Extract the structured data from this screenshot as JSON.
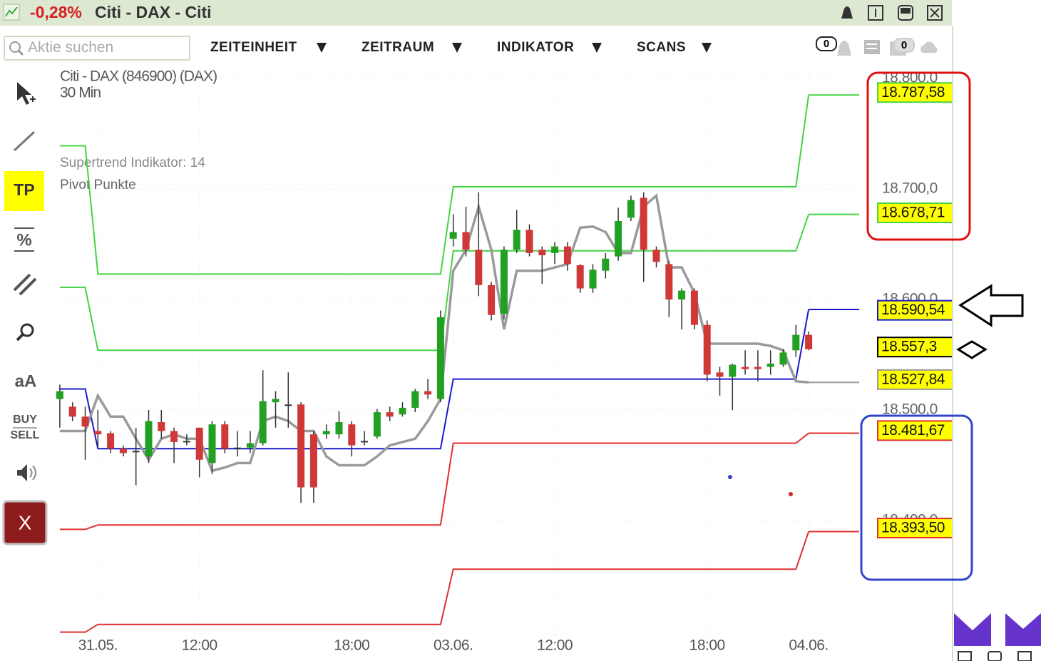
{
  "header": {
    "change": "-0,28%",
    "title": "Citi - DAX - Citi"
  },
  "toolbar": {
    "search_placeholder": "Aktie suchen",
    "menus": [
      "ZEITEINHEIT",
      "ZEITRAUM",
      "INDIKATOR",
      "SCANS"
    ],
    "badges": [
      0,
      0
    ]
  },
  "sidebar": {
    "tools": [
      "TP",
      "%",
      "aA",
      "BUY",
      "SELL",
      "X"
    ]
  },
  "chart_data": {
    "type": "candlestick",
    "instrument": "Citi - DAX (846900) (DAX)",
    "interval": "30 Min",
    "indicators": [
      "Supertrend Indikator: 14",
      "Pivot Punkte"
    ],
    "categories": [
      null,
      null,
      null,
      "31.05.",
      null,
      null,
      null,
      null,
      null,
      null,
      null,
      "12:00",
      null,
      null,
      null,
      null,
      null,
      null,
      null,
      null,
      null,
      null,
      null,
      "18:00",
      null,
      null,
      null,
      null,
      null,
      null,
      null,
      "03.06.",
      null,
      null,
      null,
      null,
      null,
      null,
      null,
      "12:00",
      null,
      null,
      null,
      null,
      null,
      null,
      null,
      null,
      null,
      null,
      null,
      "18:00",
      null,
      null,
      null,
      null,
      null,
      null,
      null,
      "04.06."
    ],
    "open": [
      18510,
      18503,
      18494,
      18481,
      18479,
      18465,
      18463,
      18458,
      18489,
      18481,
      18472,
      18484,
      18452,
      18487,
      18466,
      18466,
      18470,
      18507,
      18505,
      18505,
      18478,
      18478,
      18478,
      18487,
      18472,
      18476,
      18498,
      18496,
      18502,
      18517,
      18510,
      18655,
      18661,
      18645,
      18613,
      18587,
      18645,
      18663,
      18645,
      18642,
      18648,
      18631,
      18610,
      18626,
      18639,
      18674,
      18692,
      18645,
      18632,
      18600,
      18608,
      18577,
      18534,
      18530,
      18539,
      18539,
      18539,
      18541,
      18554,
      18568
    ],
    "high": [
      18523,
      18507,
      18503,
      18500,
      18481,
      18468,
      18484,
      18500,
      18500,
      18484,
      18478,
      18484,
      18490,
      18490,
      18481,
      18481,
      18536,
      18517,
      18534,
      18507,
      18481,
      18487,
      18499,
      18490,
      18481,
      18501,
      18503,
      18507,
      18519,
      18528,
      18590,
      18677,
      18684,
      18697,
      18616,
      18648,
      18681,
      18668,
      18648,
      18652,
      18652,
      18632,
      18632,
      18642,
      18683,
      18694,
      18697,
      18648,
      18635,
      18610,
      18610,
      18581,
      18539,
      18542,
      18554,
      18554,
      18554,
      18555,
      18577,
      18571
    ],
    "low": [
      18484,
      18490,
      18455,
      18465,
      18461,
      18458,
      18432,
      18452,
      18474,
      18452,
      18468,
      18439,
      18442,
      18461,
      18458,
      18461,
      18468,
      18484,
      18484,
      18416,
      18416,
      18474,
      18474,
      18458,
      18468,
      18474,
      18490,
      18494,
      18498,
      18510,
      18507,
      18648,
      18639,
      18603,
      18581,
      18582,
      18642,
      18639,
      18614,
      18632,
      18626,
      18606,
      18606,
      18619,
      18635,
      18671,
      18616,
      18629,
      18584,
      18573,
      18573,
      18526,
      18513,
      18500,
      18532,
      18526,
      18532,
      18539,
      18548,
      18554
    ],
    "close": [
      18517,
      18494,
      18485,
      18478,
      18465,
      18461,
      18463,
      18490,
      18481,
      18471,
      18472,
      18455,
      18487,
      18465,
      18466,
      18470,
      18508,
      18510,
      18505,
      18430,
      18430,
      18481,
      18489,
      18468,
      18472,
      18498,
      18494,
      18502,
      18517,
      18514,
      18584,
      18661,
      18645,
      18613,
      18586,
      18645,
      18663,
      18642,
      18640,
      18648,
      18632,
      18610,
      18627,
      18637,
      18671,
      18690,
      18645,
      18634,
      18600,
      18608,
      18577,
      18532,
      18530,
      18541,
      18537,
      18537,
      18542,
      18552,
      18568,
      18555
    ],
    "up_color": "#22a022",
    "down_color": "#d03838",
    "series": [
      {
        "color": "#44d444",
        "values": [
          18739,
          18739,
          18739,
          18623,
          18623,
          18623,
          18623,
          18623,
          18623,
          18623,
          18623,
          18623,
          18623,
          18623,
          18623,
          18623,
          18623,
          18623,
          18623,
          18623,
          18623,
          18623,
          18623,
          18623,
          18623,
          18623,
          18623,
          18623,
          18623,
          18623,
          18623,
          18702,
          18702,
          18702,
          18702,
          18702,
          18702,
          18702,
          18702,
          18702,
          18702,
          18702,
          18702,
          18702,
          18702,
          18702,
          18702,
          18702,
          18702,
          18702,
          18702,
          18702,
          18702,
          18702,
          18702,
          18702,
          18702,
          18702,
          18702,
          18785
        ]
      },
      {
        "color": "#44d444",
        "values": [
          18611,
          18611,
          18611,
          18554,
          18554,
          18554,
          18554,
          18554,
          18554,
          18554,
          18554,
          18554,
          18554,
          18554,
          18554,
          18554,
          18554,
          18554,
          18554,
          18554,
          18554,
          18554,
          18554,
          18554,
          18554,
          18554,
          18554,
          18554,
          18554,
          18554,
          18554,
          18644,
          18644,
          18644,
          18644,
          18644,
          18644,
          18644,
          18644,
          18644,
          18644,
          18644,
          18644,
          18644,
          18644,
          18644,
          18644,
          18644,
          18644,
          18644,
          18644,
          18644,
          18644,
          18644,
          18644,
          18644,
          18644,
          18644,
          18644,
          18677
        ]
      },
      {
        "color": "#1a1acc",
        "values": [
          18519,
          18519,
          18519,
          18465,
          18465,
          18465,
          18465,
          18465,
          18465,
          18465,
          18465,
          18465,
          18465,
          18465,
          18465,
          18465,
          18465,
          18465,
          18465,
          18465,
          18465,
          18465,
          18465,
          18465,
          18465,
          18465,
          18465,
          18465,
          18465,
          18465,
          18465,
          18528,
          18528,
          18528,
          18528,
          18528,
          18528,
          18528,
          18528,
          18528,
          18528,
          18528,
          18528,
          18528,
          18528,
          18528,
          18528,
          18528,
          18528,
          18528,
          18528,
          18528,
          18528,
          18528,
          18528,
          18528,
          18528,
          18528,
          18528,
          18591
        ]
      },
      {
        "color": "#e03030",
        "values": [
          18392,
          18392,
          18392,
          18396,
          18396,
          18396,
          18396,
          18396,
          18396,
          18396,
          18396,
          18396,
          18396,
          18396,
          18396,
          18396,
          18396,
          18396,
          18396,
          18396,
          18396,
          18396,
          18396,
          18396,
          18396,
          18396,
          18396,
          18396,
          18396,
          18396,
          18396,
          18470,
          18470,
          18470,
          18470,
          18470,
          18470,
          18470,
          18470,
          18470,
          18470,
          18470,
          18470,
          18470,
          18470,
          18470,
          18470,
          18470,
          18470,
          18470,
          18470,
          18470,
          18470,
          18470,
          18470,
          18470,
          18470,
          18470,
          18470,
          18479
        ]
      },
      {
        "color": "#e03030",
        "values": [
          18299,
          18299,
          18299,
          18306,
          18306,
          18306,
          18306,
          18306,
          18306,
          18306,
          18306,
          18306,
          18306,
          18306,
          18306,
          18306,
          18306,
          18306,
          18306,
          18306,
          18306,
          18306,
          18306,
          18306,
          18306,
          18306,
          18306,
          18306,
          18306,
          18306,
          18306,
          18356,
          18356,
          18356,
          18356,
          18356,
          18356,
          18356,
          18356,
          18356,
          18356,
          18356,
          18356,
          18356,
          18356,
          18356,
          18356,
          18356,
          18356,
          18356,
          18356,
          18356,
          18356,
          18356,
          18356,
          18356,
          18356,
          18356,
          18356,
          18390
        ]
      },
      {
        "color": "#9a9a9a",
        "values": [
          18481,
          18481,
          18481,
          18513,
          18494,
          18494,
          18474,
          18455,
          18474,
          18478,
          18474,
          18474,
          18445,
          18448,
          18452,
          18452,
          18490,
          18494,
          18490,
          18481,
          18481,
          18458,
          18450,
          18450,
          18450,
          18458,
          18468,
          18471,
          18474,
          18490,
          18510,
          18626,
          18645,
          18684,
          18645,
          18573,
          18626,
          18626,
          18626,
          18629,
          18632,
          18665,
          18666,
          18661,
          18642,
          18642,
          18684,
          18694,
          18629,
          18629,
          18606,
          18560,
          18560,
          18560,
          18560,
          18560,
          18558,
          18554,
          18526,
          18525
        ]
      }
    ],
    "ylim": [
      18295,
      18810
    ],
    "yticks": [
      {
        "value": 18400,
        "label": "18.400,0"
      },
      {
        "value": 18500,
        "label": "18.500,0"
      },
      {
        "value": 18600,
        "label": "18.600,0"
      },
      {
        "value": 18700,
        "label": "18.700,0"
      },
      {
        "value": 18800,
        "label": "18.800,0"
      }
    ],
    "grid": true,
    "price_labels": [
      {
        "value": 18787.58,
        "label": "18.787,58",
        "color": "#44d444"
      },
      {
        "value": 18678.71,
        "label": "18.678,71",
        "color": "#44d444"
      },
      {
        "value": 18590.54,
        "label": "18.590,54",
        "color": "#1a1acc"
      },
      {
        "value": 18557.3,
        "label": "18.557,3",
        "color": "#000000"
      },
      {
        "value": 18527.84,
        "label": "18.527,84",
        "color": "#9a9a9a"
      },
      {
        "value": 18481.67,
        "label": "18.481,67",
        "color": "#e03030"
      },
      {
        "value": 18393.5,
        "label": "18.393,50",
        "color": "#e03030"
      }
    ]
  }
}
